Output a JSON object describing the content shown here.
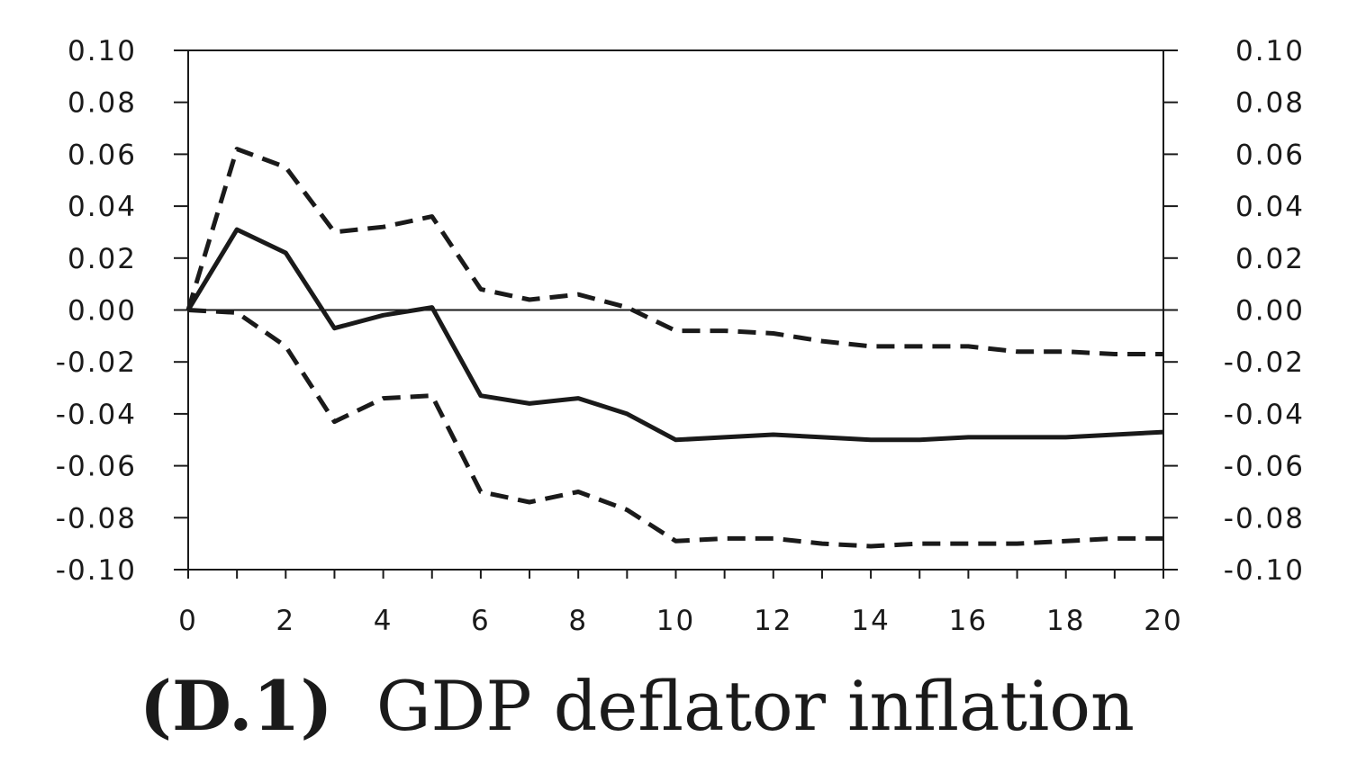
{
  "chart_data": {
    "type": "line",
    "panel_label": "(D.1)",
    "title": "GDP deflator inflation",
    "x": [
      0,
      1,
      2,
      3,
      4,
      5,
      6,
      7,
      8,
      9,
      10,
      11,
      12,
      13,
      14,
      15,
      16,
      17,
      18,
      19,
      20
    ],
    "xlim": [
      0,
      20
    ],
    "ylim": [
      -0.1,
      0.1
    ],
    "x_ticks": [
      0,
      2,
      4,
      6,
      8,
      10,
      12,
      14,
      16,
      18,
      20
    ],
    "x_tick_labels": [
      "0",
      "2",
      "4",
      "6",
      "8",
      "10",
      "12",
      "14",
      "16",
      "18",
      "20"
    ],
    "y_ticks": [
      0.1,
      0.08,
      0.06,
      0.04,
      0.02,
      0.0,
      -0.02,
      -0.04,
      -0.06,
      -0.08,
      -0.1
    ],
    "y_tick_labels": [
      "0.10",
      "0.08",
      "0.06",
      "0.04",
      "0.02",
      "0.00",
      "-0.02",
      "-0.04",
      "-0.06",
      "-0.08",
      "-0.10"
    ],
    "zero_line": true,
    "grid": false,
    "series": [
      {
        "style": "solid",
        "color": "#1a1a1a",
        "values": [
          0.0,
          0.031,
          0.022,
          -0.007,
          -0.002,
          0.001,
          -0.033,
          -0.036,
          -0.034,
          -0.04,
          -0.05,
          -0.049,
          -0.048,
          -0.049,
          -0.05,
          -0.05,
          -0.049,
          -0.049,
          -0.049,
          -0.048,
          -0.047
        ]
      },
      {
        "style": "dashed",
        "color": "#1a1a1a",
        "values": [
          0.0,
          0.062,
          0.055,
          0.03,
          0.032,
          0.036,
          0.008,
          0.004,
          0.006,
          0.001,
          -0.008,
          -0.008,
          -0.009,
          -0.012,
          -0.014,
          -0.014,
          -0.014,
          -0.016,
          -0.016,
          -0.017,
          -0.017
        ]
      },
      {
        "style": "dashed",
        "color": "#1a1a1a",
        "values": [
          0.0,
          -0.001,
          -0.014,
          -0.043,
          -0.034,
          -0.033,
          -0.07,
          -0.074,
          -0.07,
          -0.077,
          -0.089,
          -0.088,
          -0.088,
          -0.09,
          -0.091,
          -0.09,
          -0.09,
          -0.09,
          -0.089,
          -0.088,
          -0.088
        ]
      }
    ]
  }
}
